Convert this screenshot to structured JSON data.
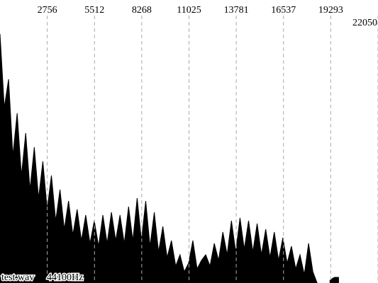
{
  "chart_data": {
    "type": "area",
    "annotations": [
      "test.wav",
      "44100Hz"
    ],
    "xlim": [
      0,
      22050
    ],
    "xticks": [
      2756,
      5512,
      8268,
      11025,
      13781,
      16537,
      19293,
      22050
    ],
    "ylim": [
      0,
      1
    ],
    "grid": true,
    "color": "#000000",
    "x": [
      0,
      250,
      500,
      750,
      1000,
      1250,
      1500,
      1750,
      2000,
      2250,
      2500,
      2750,
      3000,
      3250,
      3500,
      3750,
      4000,
      4250,
      4500,
      4750,
      5000,
      5250,
      5500,
      5750,
      6000,
      6250,
      6500,
      6750,
      7000,
      7250,
      7500,
      7750,
      8000,
      8250,
      8500,
      8750,
      9000,
      9250,
      9500,
      9750,
      10000,
      10250,
      10500,
      10750,
      11000,
      11250,
      11500,
      11750,
      12000,
      12250,
      12500,
      12750,
      13000,
      13250,
      13500,
      13750,
      14000,
      14250,
      14500,
      14750,
      15000,
      15250,
      15500,
      15750,
      16000,
      16250,
      16500,
      16750,
      17000,
      17250,
      17500,
      17750,
      18000,
      18250,
      18500,
      18750,
      19000,
      19250,
      19500,
      19750
    ],
    "values": [
      0.88,
      0.62,
      0.72,
      0.45,
      0.6,
      0.38,
      0.53,
      0.33,
      0.48,
      0.3,
      0.43,
      0.26,
      0.38,
      0.22,
      0.33,
      0.19,
      0.29,
      0.17,
      0.26,
      0.15,
      0.24,
      0.14,
      0.22,
      0.13,
      0.24,
      0.14,
      0.25,
      0.15,
      0.24,
      0.14,
      0.27,
      0.15,
      0.3,
      0.15,
      0.29,
      0.13,
      0.25,
      0.11,
      0.2,
      0.09,
      0.15,
      0.06,
      0.1,
      0.04,
      0.07,
      0.15,
      0.05,
      0.08,
      0.1,
      0.06,
      0.14,
      0.08,
      0.18,
      0.1,
      0.22,
      0.11,
      0.23,
      0.12,
      0.22,
      0.11,
      0.21,
      0.1,
      0.19,
      0.09,
      0.18,
      0.08,
      0.16,
      0.07,
      0.13,
      0.05,
      0.1,
      0.03,
      0.14,
      0.04,
      0,
      null,
      null,
      0.01,
      0.02,
      0.02
    ]
  }
}
